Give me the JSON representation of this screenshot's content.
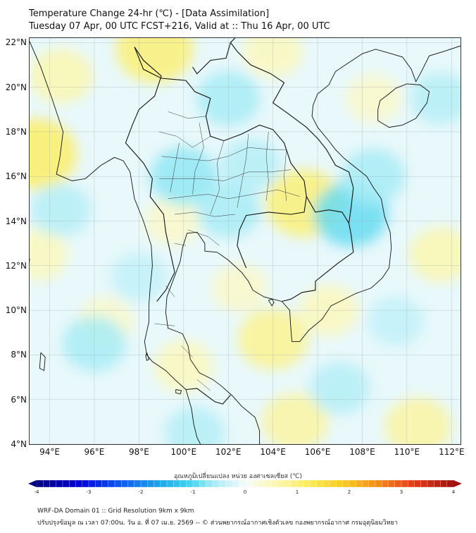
{
  "title_line1": "Temperature Change 24-hr (℃) - [Data Assimilation]",
  "title_line2": "Tuesday 07 Apr, 00 UTC FCST+216, Valid at :: Thu 16 Apr, 00 UTC",
  "lat_labels": [
    "22°N",
    "20°N",
    "18°N",
    "16°N",
    "14°N",
    "12°N",
    "10°N",
    "8°N",
    "6°N",
    "4°N"
  ],
  "lon_labels": [
    "94°E",
    "96°E",
    "98°E",
    "100°E",
    "102°E",
    "104°E",
    "106°E",
    "108°E",
    "110°E",
    "112°E"
  ],
  "map": {
    "lat_range": [
      4,
      22.2
    ],
    "lon_range": [
      93.1,
      112.4
    ],
    "background_color": "#e8f8fb",
    "anomaly_blobs": [
      {
        "lon": 98.7,
        "lat": 21.7,
        "value": 1.0
      },
      {
        "lon": 93.4,
        "lat": 17.0,
        "value": 1.1
      },
      {
        "lon": 94.5,
        "lat": 20.5,
        "value": 0.6
      },
      {
        "lon": 104.0,
        "lat": 21.6,
        "value": 0.5
      },
      {
        "lon": 105.4,
        "lat": 14.8,
        "value": 1.0
      },
      {
        "lon": 104.0,
        "lat": 8.7,
        "value": 0.8
      },
      {
        "lon": 105.0,
        "lat": 5.0,
        "value": 0.7
      },
      {
        "lon": 110.5,
        "lat": 4.8,
        "value": 0.7
      },
      {
        "lon": 100.0,
        "lat": 7.5,
        "value": 0.5
      },
      {
        "lon": 93.5,
        "lat": 12.5,
        "value": 0.5
      },
      {
        "lon": 111.5,
        "lat": 12.5,
        "value": 0.6
      },
      {
        "lon": 108.5,
        "lat": 19.5,
        "value": 0.4
      },
      {
        "lon": 99.5,
        "lat": 14.0,
        "value": 0.4
      },
      {
        "lon": 102.5,
        "lat": 11.0,
        "value": 0.4
      },
      {
        "lon": 106.5,
        "lat": 10.0,
        "value": 0.5
      },
      {
        "lon": 96.5,
        "lat": 9.5,
        "value": 0.4
      },
      {
        "lon": 102.0,
        "lat": 19.5,
        "value": -0.6
      },
      {
        "lon": 100.0,
        "lat": 16.0,
        "value": -0.7
      },
      {
        "lon": 102.0,
        "lat": 14.5,
        "value": -0.6
      },
      {
        "lon": 107.5,
        "lat": 14.3,
        "value": -0.9
      },
      {
        "lon": 108.5,
        "lat": 16.0,
        "value": -0.6
      },
      {
        "lon": 94.5,
        "lat": 14.5,
        "value": -0.5
      },
      {
        "lon": 96.0,
        "lat": 8.5,
        "value": -0.6
      },
      {
        "lon": 107.0,
        "lat": 6.5,
        "value": -0.5
      },
      {
        "lon": 103.0,
        "lat": 16.5,
        "value": -0.5
      },
      {
        "lon": 98.0,
        "lat": 11.5,
        "value": -0.4
      },
      {
        "lon": 111.5,
        "lat": 19.5,
        "value": -0.5
      },
      {
        "lon": 109.5,
        "lat": 9.5,
        "value": -0.4
      },
      {
        "lon": 100.5,
        "lat": 4.5,
        "value": -0.5
      }
    ],
    "coastlines": [
      [
        [
          93.1,
          22.05
        ],
        [
          93.6,
          20.9
        ],
        [
          94.1,
          19.5
        ],
        [
          94.6,
          18.0
        ],
        [
          94.45,
          16.8
        ],
        [
          94.3,
          16.1
        ],
        [
          95.0,
          15.8
        ],
        [
          95.6,
          15.9
        ],
        [
          96.3,
          16.5
        ],
        [
          96.9,
          16.85
        ],
        [
          97.3,
          16.7
        ],
        [
          97.6,
          16.2
        ],
        [
          97.8,
          15.0
        ],
        [
          98.2,
          14.0
        ],
        [
          98.55,
          12.9
        ],
        [
          98.6,
          12.0
        ],
        [
          98.5,
          11.0
        ],
        [
          98.45,
          10.3
        ],
        [
          98.45,
          9.5
        ],
        [
          98.25,
          8.6
        ],
        [
          98.35,
          8.0
        ],
        [
          98.6,
          7.7
        ],
        [
          99.2,
          7.3
        ],
        [
          99.6,
          6.9
        ],
        [
          100.1,
          6.45
        ],
        [
          100.35,
          5.6
        ],
        [
          100.45,
          4.9
        ],
        [
          100.6,
          4.3
        ],
        [
          100.75,
          4.0
        ]
      ],
      [
        [
          103.4,
          4.0
        ],
        [
          103.4,
          4.6
        ],
        [
          103.2,
          5.2
        ],
        [
          102.6,
          5.7
        ],
        [
          102.2,
          6.15
        ],
        [
          101.7,
          6.6
        ],
        [
          101.3,
          6.9
        ],
        [
          100.7,
          7.2
        ],
        [
          100.3,
          7.8
        ],
        [
          100.2,
          8.4
        ],
        [
          99.95,
          8.95
        ],
        [
          99.3,
          9.2
        ],
        [
          99.2,
          9.9
        ],
        [
          99.25,
          10.6
        ],
        [
          99.55,
          11.4
        ],
        [
          99.85,
          12.2
        ],
        [
          99.95,
          12.8
        ],
        [
          100.15,
          13.45
        ],
        [
          100.6,
          13.5
        ],
        [
          100.95,
          13.0
        ],
        [
          100.95,
          12.65
        ],
        [
          101.5,
          12.6
        ],
        [
          102.0,
          12.25
        ],
        [
          102.6,
          11.7
        ],
        [
          102.9,
          11.3
        ],
        [
          103.1,
          10.9
        ],
        [
          103.6,
          10.6
        ],
        [
          104.4,
          10.4
        ],
        [
          104.75,
          10.0
        ],
        [
          104.8,
          9.2
        ],
        [
          104.85,
          8.6
        ],
        [
          105.2,
          8.6
        ],
        [
          105.6,
          9.1
        ],
        [
          106.2,
          9.6
        ],
        [
          106.6,
          10.2
        ],
        [
          107.0,
          10.4
        ],
        [
          107.7,
          10.75
        ],
        [
          108.4,
          11.0
        ],
        [
          108.9,
          11.45
        ],
        [
          109.2,
          11.9
        ],
        [
          109.3,
          12.8
        ],
        [
          109.25,
          13.5
        ],
        [
          109.0,
          14.2
        ],
        [
          108.85,
          15.0
        ],
        [
          108.5,
          15.5
        ],
        [
          108.2,
          16.0
        ],
        [
          107.7,
          16.4
        ],
        [
          107.2,
          16.8
        ],
        [
          106.8,
          17.2
        ],
        [
          106.5,
          17.6
        ],
        [
          106.0,
          18.2
        ],
        [
          105.75,
          18.7
        ],
        [
          105.8,
          19.2
        ],
        [
          106.0,
          19.7
        ],
        [
          106.5,
          20.1
        ],
        [
          106.8,
          20.7
        ],
        [
          107.4,
          21.1
        ],
        [
          108.0,
          21.5
        ],
        [
          108.6,
          21.7
        ],
        [
          109.3,
          21.5
        ],
        [
          109.8,
          21.35
        ],
        [
          110.2,
          20.8
        ],
        [
          110.4,
          20.25
        ],
        [
          110.6,
          20.6
        ],
        [
          111.0,
          21.4
        ],
        [
          111.8,
          21.65
        ],
        [
          112.4,
          21.85
        ]
      ],
      [
        [
          108.7,
          19.0
        ],
        [
          108.7,
          18.5
        ],
        [
          109.2,
          18.2
        ],
        [
          109.8,
          18.3
        ],
        [
          110.4,
          18.6
        ],
        [
          110.9,
          19.3
        ],
        [
          111.0,
          19.8
        ],
        [
          110.6,
          20.1
        ],
        [
          110.0,
          20.15
        ],
        [
          109.5,
          19.95
        ],
        [
          109.2,
          19.7
        ],
        [
          108.8,
          19.4
        ],
        [
          108.7,
          19.0
        ]
      ],
      [
        [
          103.8,
          10.45
        ],
        [
          103.95,
          10.2
        ],
        [
          104.05,
          10.35
        ],
        [
          103.95,
          10.5
        ],
        [
          103.8,
          10.45
        ]
      ],
      [
        [
          98.35,
          8.1
        ],
        [
          98.45,
          7.8
        ],
        [
          98.35,
          7.75
        ],
        [
          98.3,
          7.95
        ],
        [
          98.35,
          8.1
        ]
      ],
      [
        [
          99.65,
          6.45
        ],
        [
          99.9,
          6.4
        ],
        [
          99.85,
          6.25
        ],
        [
          99.65,
          6.3
        ],
        [
          99.65,
          6.45
        ]
      ],
      [
        [
          93.6,
          8.1
        ],
        [
          93.55,
          7.4
        ],
        [
          93.75,
          7.3
        ],
        [
          93.8,
          7.9
        ],
        [
          93.6,
          8.1
        ]
      ],
      [
        [
          92.95,
          12.3
        ],
        [
          93.05,
          11.6
        ],
        [
          93.1,
          12.3
        ],
        [
          92.95,
          12.3
        ]
      ]
    ],
    "borders": [
      [
        [
          97.8,
          21.8
        ],
        [
          98.2,
          20.8
        ],
        [
          99.0,
          20.4
        ],
        [
          100.1,
          20.3
        ],
        [
          100.5,
          19.8
        ],
        [
          101.2,
          19.5
        ],
        [
          101.0,
          18.7
        ],
        [
          101.2,
          17.8
        ],
        [
          101.8,
          17.6
        ],
        [
          102.6,
          17.9
        ],
        [
          103.4,
          18.3
        ],
        [
          104.0,
          18.1
        ],
        [
          104.5,
          17.5
        ],
        [
          104.8,
          16.6
        ],
        [
          105.4,
          15.8
        ],
        [
          105.5,
          15.1
        ],
        [
          105.4,
          14.4
        ],
        [
          104.8,
          14.3
        ],
        [
          103.8,
          14.4
        ],
        [
          102.8,
          14.25
        ],
        [
          102.5,
          13.6
        ],
        [
          102.4,
          12.9
        ],
        [
          102.6,
          12.4
        ],
        [
          102.8,
          11.9
        ]
      ],
      [
        [
          97.8,
          21.8
        ],
        [
          98.2,
          21.2
        ],
        [
          99.0,
          20.5
        ],
        [
          98.7,
          19.6
        ],
        [
          98.0,
          19.0
        ],
        [
          97.7,
          18.3
        ],
        [
          97.4,
          17.5
        ],
        [
          98.2,
          16.6
        ],
        [
          98.6,
          15.9
        ],
        [
          98.5,
          15.1
        ],
        [
          99.1,
          14.3
        ],
        [
          99.2,
          13.5
        ],
        [
          99.4,
          12.6
        ],
        [
          99.6,
          11.7
        ],
        [
          99.2,
          10.9
        ],
        [
          98.8,
          10.4
        ]
      ],
      [
        [
          100.4,
          20.9
        ],
        [
          100.6,
          20.6
        ],
        [
          101.2,
          21.2
        ],
        [
          101.9,
          21.3
        ],
        [
          102.1,
          22.0
        ]
      ],
      [
        [
          102.1,
          22.0
        ],
        [
          102.7,
          22.6
        ]
      ],
      [
        [
          102.1,
          22.0
        ],
        [
          102.4,
          21.6
        ],
        [
          103.0,
          21.0
        ],
        [
          103.9,
          20.6
        ],
        [
          104.5,
          20.2
        ],
        [
          104.0,
          19.3
        ],
        [
          104.7,
          18.8
        ],
        [
          105.5,
          18.2
        ],
        [
          106.0,
          17.7
        ],
        [
          106.4,
          17.2
        ],
        [
          106.8,
          16.5
        ],
        [
          107.4,
          16.2
        ],
        [
          107.6,
          15.5
        ],
        [
          107.5,
          14.6
        ],
        [
          107.4,
          13.9
        ]
      ],
      [
        [
          105.5,
          15.1
        ],
        [
          105.9,
          14.4
        ],
        [
          106.5,
          14.5
        ],
        [
          107.1,
          14.4
        ],
        [
          107.4,
          13.9
        ],
        [
          107.5,
          13.4
        ],
        [
          107.6,
          12.6
        ],
        [
          106.9,
          12.1
        ],
        [
          106.4,
          11.7
        ],
        [
          105.9,
          11.3
        ],
        [
          105.9,
          10.9
        ],
        [
          105.3,
          10.8
        ],
        [
          104.8,
          10.5
        ],
        [
          104.4,
          10.4
        ]
      ],
      [
        [
          100.1,
          6.45
        ],
        [
          100.6,
          6.5
        ],
        [
          101.0,
          6.2
        ],
        [
          101.4,
          5.9
        ],
        [
          101.75,
          5.8
        ],
        [
          102.1,
          6.2
        ]
      ]
    ],
    "province_lines": [
      [
        [
          99.3,
          18.9
        ],
        [
          100.2,
          18.6
        ],
        [
          101.0,
          18.7
        ]
      ],
      [
        [
          98.9,
          18.0
        ],
        [
          99.7,
          17.8
        ],
        [
          100.4,
          17.3
        ],
        [
          101.2,
          17.8
        ]
      ],
      [
        [
          99.0,
          16.9
        ],
        [
          100.0,
          16.8
        ],
        [
          101.1,
          16.7
        ],
        [
          102.0,
          16.9
        ],
        [
          102.9,
          17.3
        ],
        [
          103.9,
          17.2
        ],
        [
          104.6,
          17.2
        ]
      ],
      [
        [
          98.9,
          15.9
        ],
        [
          99.8,
          15.9
        ],
        [
          100.8,
          15.9
        ],
        [
          101.8,
          15.8
        ],
        [
          102.9,
          16.2
        ],
        [
          103.9,
          16.2
        ],
        [
          104.8,
          16.3
        ]
      ],
      [
        [
          99.3,
          15.0
        ],
        [
          100.1,
          15.1
        ],
        [
          101.1,
          15.2
        ],
        [
          102.0,
          15.0
        ],
        [
          103.1,
          15.2
        ],
        [
          104.2,
          15.4
        ],
        [
          105.2,
          15.1
        ]
      ],
      [
        [
          99.6,
          14.3
        ],
        [
          100.5,
          14.4
        ],
        [
          101.4,
          14.2
        ],
        [
          102.3,
          14.3
        ]
      ],
      [
        [
          99.8,
          17.5
        ],
        [
          99.6,
          16.4
        ],
        [
          99.4,
          15.3
        ]
      ],
      [
        [
          100.7,
          18.4
        ],
        [
          100.9,
          17.3
        ],
        [
          100.5,
          16.2
        ],
        [
          100.4,
          15.2
        ]
      ],
      [
        [
          101.8,
          17.6
        ],
        [
          101.5,
          16.6
        ],
        [
          101.6,
          15.4
        ],
        [
          101.2,
          14.3
        ]
      ],
      [
        [
          102.9,
          17.9
        ],
        [
          102.8,
          16.8
        ],
        [
          102.6,
          15.7
        ],
        [
          102.4,
          14.6
        ]
      ],
      [
        [
          103.8,
          18.0
        ],
        [
          103.7,
          16.9
        ],
        [
          103.8,
          15.8
        ],
        [
          103.7,
          14.9
        ]
      ],
      [
        [
          104.6,
          17.2
        ],
        [
          104.5,
          16.0
        ],
        [
          104.6,
          14.9
        ]
      ],
      [
        [
          100.2,
          13.6
        ],
        [
          101.1,
          13.3
        ],
        [
          101.6,
          12.9
        ]
      ],
      [
        [
          99.6,
          13.0
        ],
        [
          100.1,
          12.9
        ]
      ],
      [
        [
          99.2,
          11.1
        ],
        [
          99.6,
          10.6
        ]
      ],
      [
        [
          98.7,
          9.4
        ],
        [
          99.6,
          9.3
        ]
      ],
      [
        [
          99.9,
          8.4
        ],
        [
          100.4,
          7.9
        ]
      ],
      [
        [
          100.6,
          6.9
        ],
        [
          101.2,
          6.4
        ]
      ]
    ]
  },
  "colorbar": {
    "title": "อุณหภูมิเปลี่ยนแปลง หน่วย องศาเซลเซียส (℃)",
    "min": -4,
    "max": 4,
    "tick_labels": [
      "-4",
      "-3",
      "-2",
      "-1",
      "0",
      "1",
      "2",
      "3",
      "4"
    ],
    "stops": [
      {
        "value": -4.0,
        "color": "#000080"
      },
      {
        "value": -3.2,
        "color": "#0000d6"
      },
      {
        "value": -2.5,
        "color": "#0a4ef0"
      },
      {
        "value": -1.7,
        "color": "#1aa2ea"
      },
      {
        "value": -1.1,
        "color": "#3cd2ee"
      },
      {
        "value": -0.6,
        "color": "#a8ecf6"
      },
      {
        "value": 0.0,
        "color": "#f6fbfb"
      },
      {
        "value": 0.6,
        "color": "#fcf7b0"
      },
      {
        "value": 1.2,
        "color": "#fbec5a"
      },
      {
        "value": 1.9,
        "color": "#f8ca1e"
      },
      {
        "value": 2.5,
        "color": "#f39118"
      },
      {
        "value": 3.2,
        "color": "#e84018"
      },
      {
        "value": 4.0,
        "color": "#a01010"
      }
    ]
  },
  "footer_line1": "WRF-DA Domain 01 :: Grid Resolution 9km x 9km",
  "footer_line2": "ปรับปรุงข้อมูล ณ เวลา 07:00น. วัน อ. ที่ 07 เม.ย. 2569 -- © ส่วนพยากรณ์อากาศเชิงตัวเลข กองพยากรณ์อากาศ กรมอุตุนิยมวิทยา"
}
